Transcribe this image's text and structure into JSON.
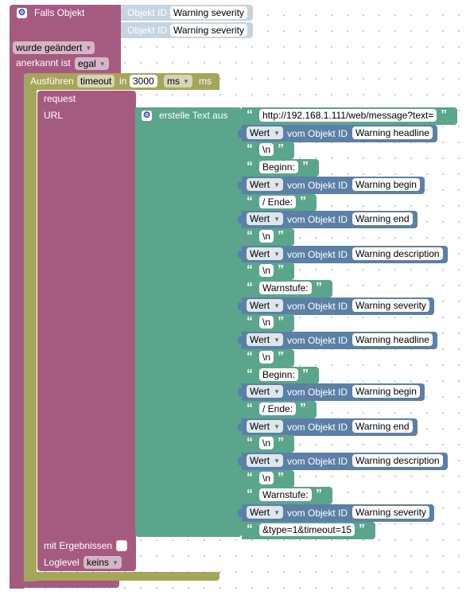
{
  "trigger": {
    "title": "Falls Objekt",
    "objects": [
      {
        "label": "Objekt ID",
        "value": "Warning severity"
      },
      {
        "label": "Objekt ID",
        "value": "Warning severity"
      }
    ],
    "changed_option": "wurde geändert",
    "ack_label": "anerkannt ist",
    "ack_value": "egal"
  },
  "exec": {
    "label": "Ausführen",
    "mode": "timeout",
    "in_label": "in",
    "timeout_value": "3000",
    "unit_dropdown": "ms",
    "unit_label": "ms"
  },
  "request": {
    "label": "request",
    "url_label": "URL",
    "with_results_label": "mit Ergebnissen",
    "loglevel_label": "Loglevel",
    "loglevel_value": "keins"
  },
  "text_join": {
    "label": "erstelle Text aus",
    "wert_label": "Wert",
    "vom_label": "vom Objekt ID",
    "items": [
      {
        "type": "text",
        "value": "http://192.168.1.111/web/message?text="
      },
      {
        "type": "wert",
        "object": "Warning headline"
      },
      {
        "type": "text",
        "value": "\\n"
      },
      {
        "type": "text",
        "value": "Beginn: "
      },
      {
        "type": "wert",
        "object": "Warning begin"
      },
      {
        "type": "text",
        "value": "  /  Ende: "
      },
      {
        "type": "wert",
        "object": "Warning end"
      },
      {
        "type": "text",
        "value": "\\n"
      },
      {
        "type": "wert",
        "object": "Warning description"
      },
      {
        "type": "text",
        "value": "\\n"
      },
      {
        "type": "text",
        "value": "Warnstufe: "
      },
      {
        "type": "wert",
        "object": "Warning severity"
      },
      {
        "type": "text",
        "value": "\\n"
      },
      {
        "type": "wert",
        "object": "Warning headline"
      },
      {
        "type": "text",
        "value": "\\n"
      },
      {
        "type": "text",
        "value": "Beginn: "
      },
      {
        "type": "wert",
        "object": "Warning begin"
      },
      {
        "type": "text",
        "value": "  /  Ende: "
      },
      {
        "type": "wert",
        "object": "Warning end"
      },
      {
        "type": "text",
        "value": "\\n"
      },
      {
        "type": "wert",
        "object": "Warning description"
      },
      {
        "type": "text",
        "value": "\\n"
      },
      {
        "type": "text",
        "value": "Warnstufe: "
      },
      {
        "type": "wert",
        "object": "Warning severity"
      },
      {
        "type": "text",
        "value": "&type=1&timeout=15"
      }
    ]
  },
  "colors": {
    "trigger_block": "#a55b80",
    "exec_block": "#a5a55b",
    "request_block": "#a55b80",
    "text_block": "#5ba58c",
    "value_block": "#5b80a5",
    "object_block": "#c6d4e1"
  }
}
